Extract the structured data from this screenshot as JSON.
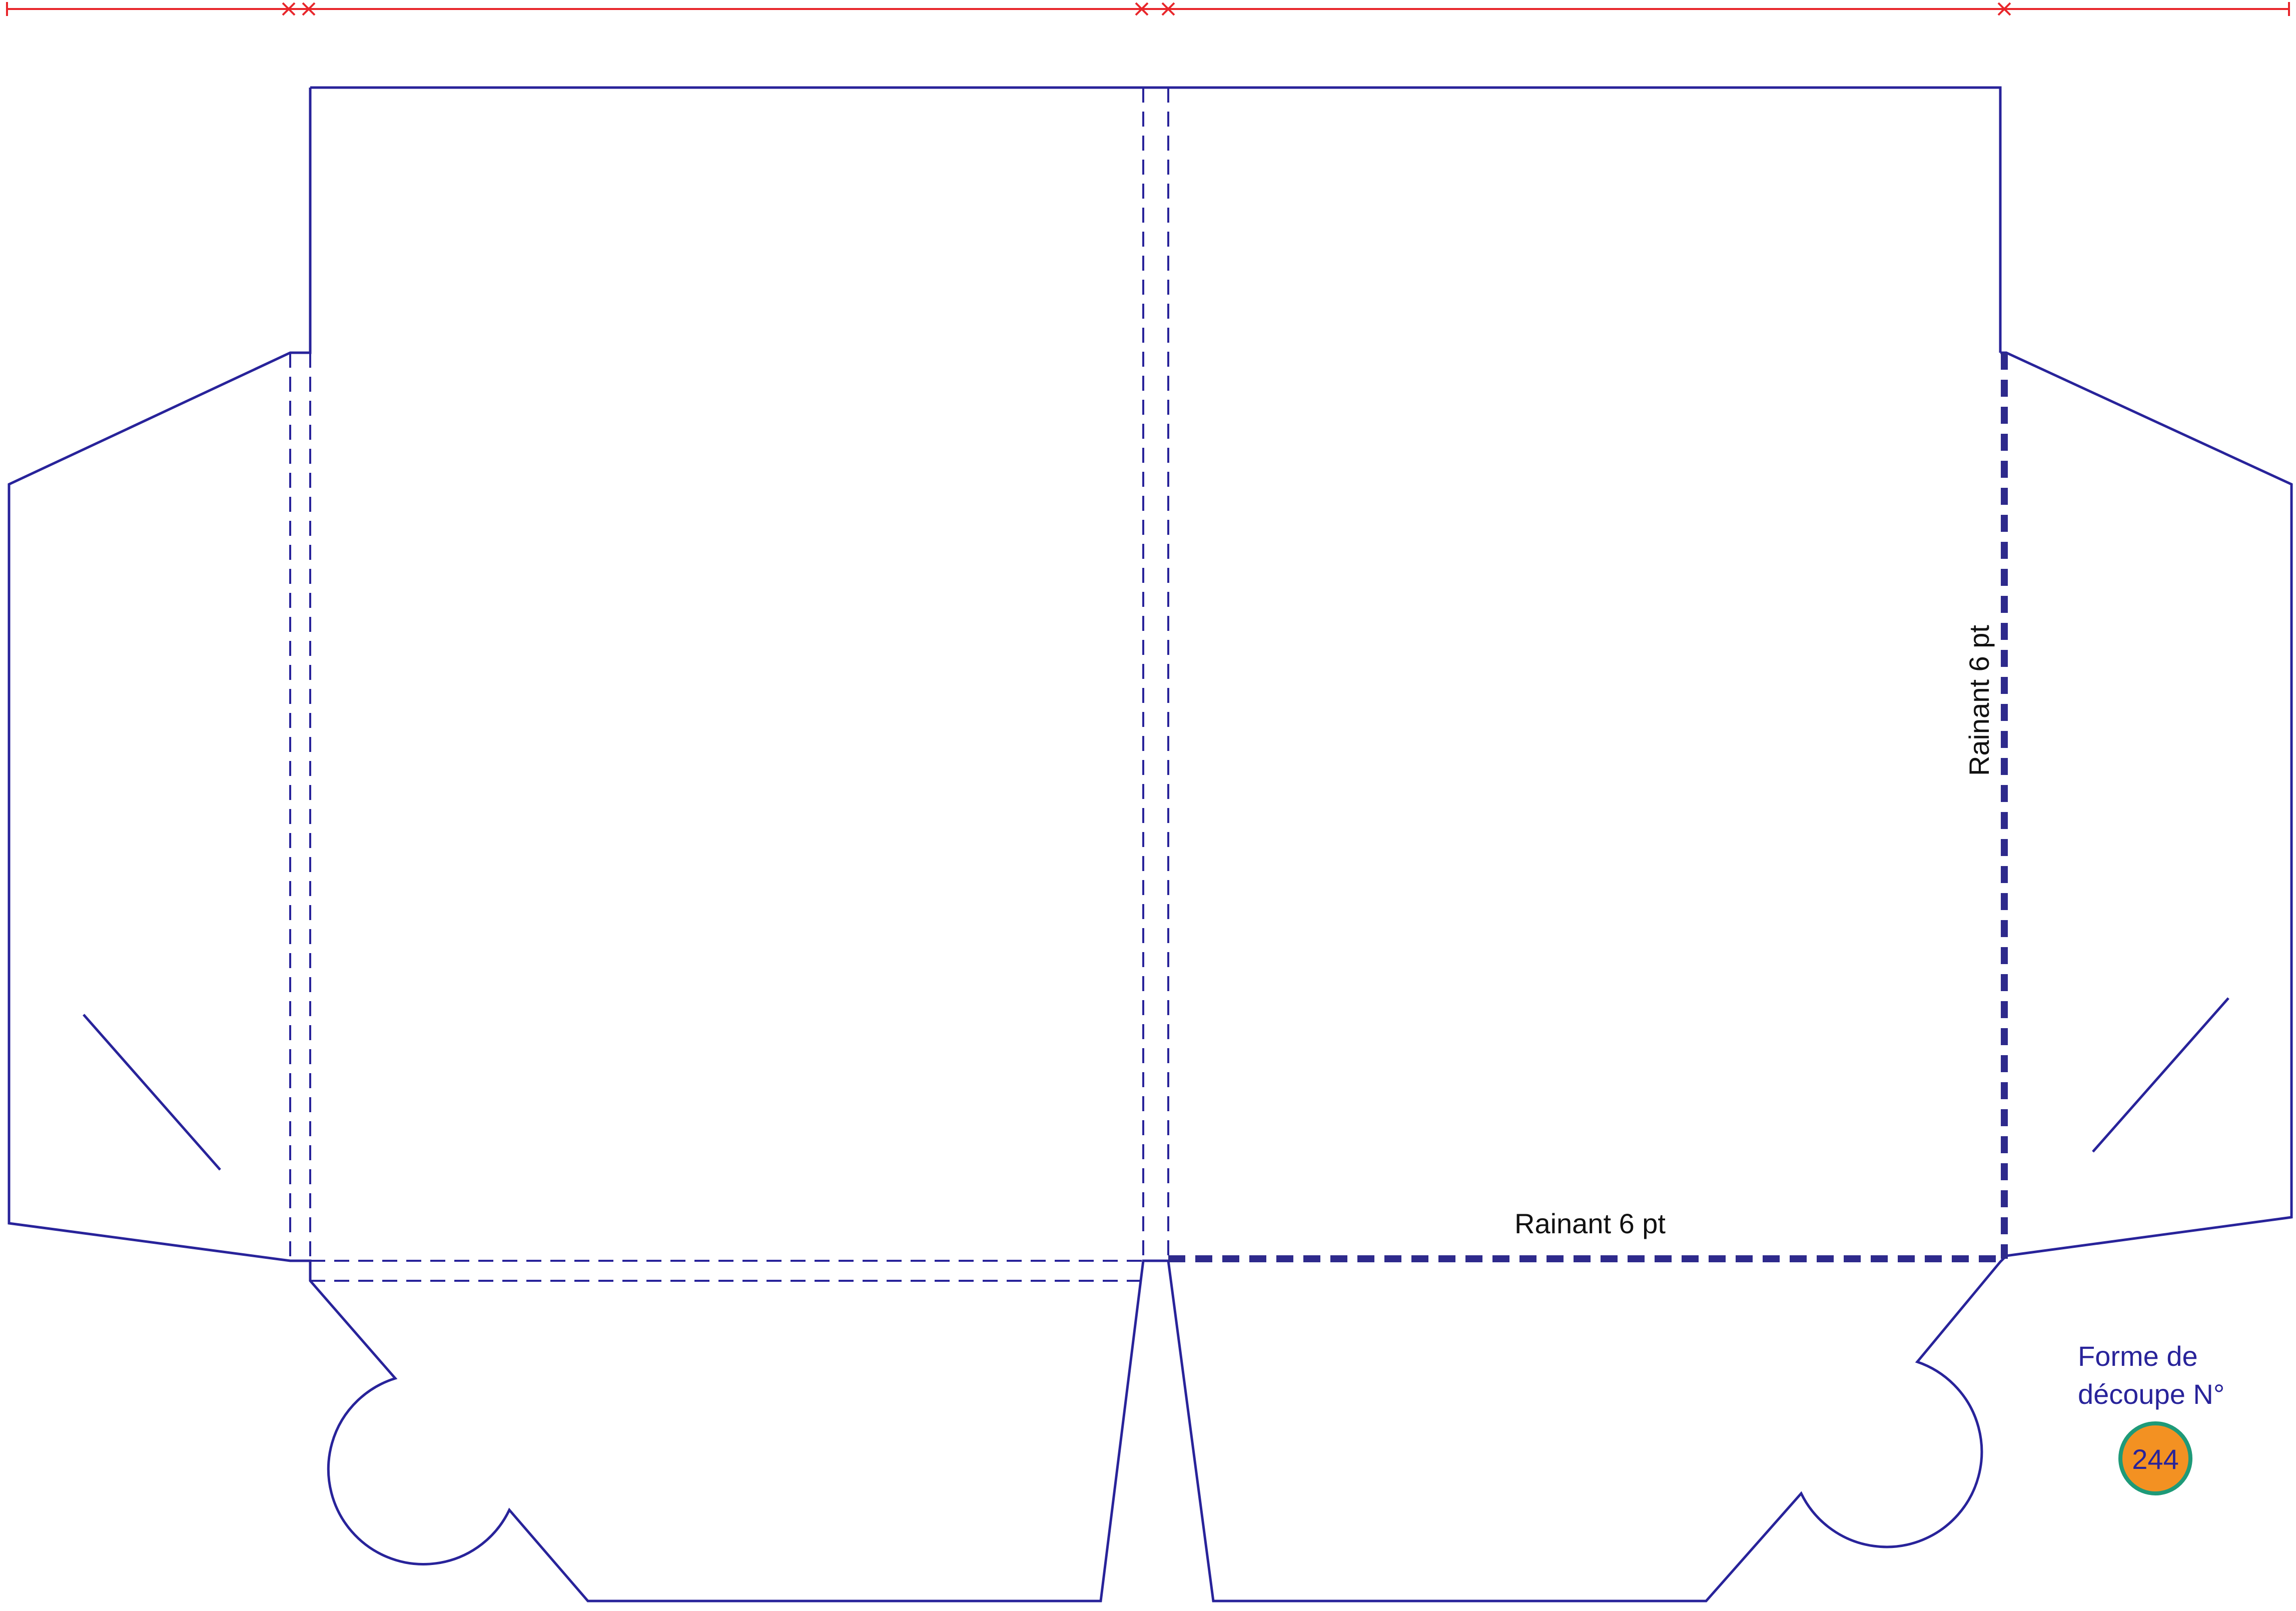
{
  "die_line": {
    "crease_label_vertical": "Rainant 6 pt",
    "crease_label_horizontal": "Rainant 6 pt"
  },
  "badge": {
    "title_line1": "Forme de",
    "title_line2": "découpe N°",
    "number": "244",
    "fill_color": "#f39122",
    "ring_color": "#1e9a78",
    "text_color": "#28239a"
  },
  "colors": {
    "cut_line": "#28239a",
    "crease_line": "#2e2a8c",
    "measure_line": "#e8262b"
  }
}
